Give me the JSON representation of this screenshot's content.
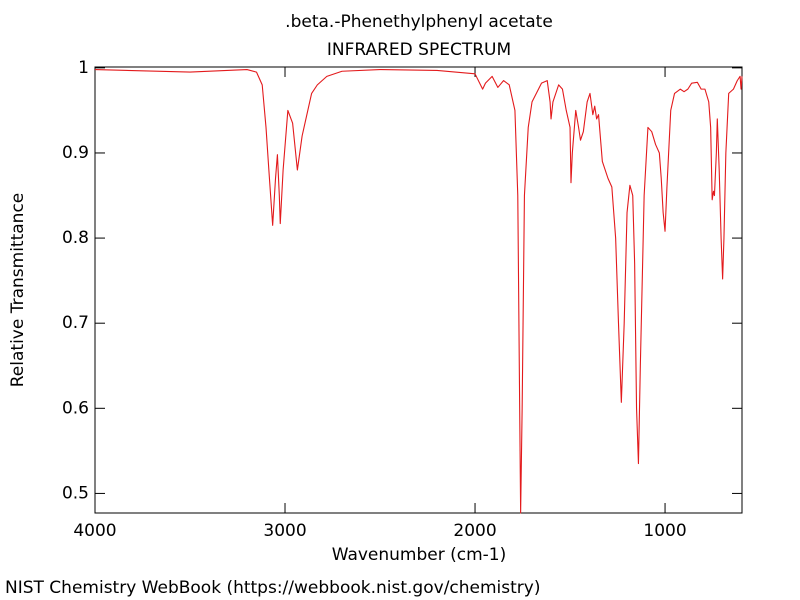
{
  "chart_data": {
    "type": "line",
    "title": ".beta.-Phenethylphenyl acetate",
    "subtitle": "INFRARED SPECTRUM",
    "x_label": "Wavenumber (cm-1)",
    "y_label": "Relative Transmittance",
    "footer": "NIST Chemistry WebBook (https://webbook.nist.gov/chemistry)",
    "color": "#e31a1c",
    "xlim": [
      4000,
      595
    ],
    "ylim": [
      0.477,
      1.001
    ],
    "xticks": [
      4000,
      3000,
      2000,
      1000
    ],
    "yticks": [
      0.5,
      0.6,
      0.7,
      0.8,
      0.9,
      1
    ],
    "x": [
      4000,
      3500,
      3200,
      3150,
      3120,
      3100,
      3085,
      3065,
      3050,
      3040,
      3030,
      3025,
      3010,
      2985,
      2960,
      2935,
      2910,
      2880,
      2860,
      2830,
      2780,
      2700,
      2500,
      2200,
      2000,
      1960,
      1945,
      1910,
      1880,
      1850,
      1820,
      1790,
      1775,
      1765,
      1760,
      1752,
      1740,
      1720,
      1700,
      1650,
      1620,
      1605,
      1600,
      1590,
      1560,
      1540,
      1520,
      1500,
      1495,
      1488,
      1470,
      1455,
      1445,
      1430,
      1410,
      1395,
      1380,
      1370,
      1360,
      1350,
      1330,
      1300,
      1280,
      1260,
      1245,
      1230,
      1215,
      1200,
      1185,
      1170,
      1160,
      1150,
      1140,
      1130,
      1110,
      1090,
      1070,
      1050,
      1040,
      1030,
      1020,
      1010,
      1000,
      990,
      970,
      950,
      920,
      900,
      880,
      860,
      830,
      810,
      790,
      770,
      760,
      752,
      745,
      740,
      730,
      725,
      715,
      705,
      697,
      690,
      680,
      665,
      640,
      620,
      605,
      600,
      595
    ],
    "values": [
      0.998,
      0.995,
      0.998,
      0.995,
      0.98,
      0.93,
      0.88,
      0.815,
      0.87,
      0.898,
      0.85,
      0.817,
      0.88,
      0.95,
      0.935,
      0.88,
      0.92,
      0.95,
      0.97,
      0.98,
      0.99,
      0.996,
      0.998,
      0.997,
      0.993,
      0.975,
      0.982,
      0.99,
      0.977,
      0.985,
      0.98,
      0.95,
      0.85,
      0.6,
      0.477,
      0.6,
      0.85,
      0.93,
      0.96,
      0.982,
      0.985,
      0.96,
      0.94,
      0.96,
      0.98,
      0.975,
      0.95,
      0.93,
      0.865,
      0.9,
      0.95,
      0.93,
      0.915,
      0.925,
      0.96,
      0.97,
      0.945,
      0.955,
      0.94,
      0.945,
      0.89,
      0.87,
      0.86,
      0.8,
      0.7,
      0.607,
      0.7,
      0.83,
      0.862,
      0.85,
      0.77,
      0.6,
      0.535,
      0.65,
      0.85,
      0.93,
      0.925,
      0.91,
      0.905,
      0.9,
      0.87,
      0.83,
      0.808,
      0.86,
      0.95,
      0.97,
      0.975,
      0.972,
      0.975,
      0.982,
      0.983,
      0.975,
      0.975,
      0.96,
      0.93,
      0.845,
      0.855,
      0.85,
      0.9,
      0.94,
      0.88,
      0.8,
      0.752,
      0.8,
      0.9,
      0.97,
      0.975,
      0.985,
      0.99,
      0.975,
      0.99
    ]
  }
}
